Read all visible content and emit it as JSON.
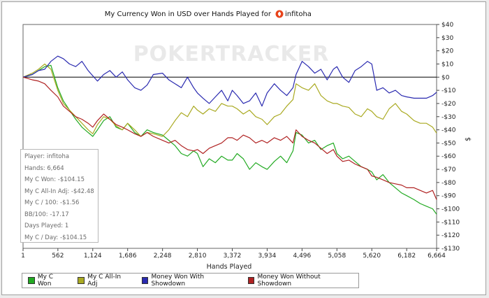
{
  "chart_data": {
    "type": "line",
    "title": "My Currency Won in USD over Hands Played for",
    "title_player": "infitoha",
    "watermark": "POKERTRACKER",
    "xlabel": "Hands Played",
    "ylabel": "$",
    "xlim": [
      1,
      6664
    ],
    "ylim": [
      -130,
      40
    ],
    "x_ticks": [
      1,
      562,
      1124,
      1686,
      2248,
      2810,
      3372,
      3934,
      4496,
      5058,
      5620,
      6182,
      6664
    ],
    "x_tick_labels": [
      "1",
      "562",
      "1,124",
      "1,686",
      "2,248",
      "2,810",
      "3,372",
      "3,934",
      "4,496",
      "5,058",
      "5,620",
      "6,182",
      "6,664"
    ],
    "y_ticks": [
      40,
      30,
      20,
      10,
      0,
      -10,
      -20,
      -30,
      -40,
      -50,
      -60,
      -70,
      -80,
      -90,
      -100,
      -110,
      -120,
      -130
    ],
    "y_tick_labels": [
      "$40",
      "$30",
      "$20",
      "$10",
      "$0",
      "-$10",
      "-$20",
      "-$30",
      "-$40",
      "-$50",
      "-$60",
      "-$70",
      "-$80",
      "-$90",
      "-$100",
      "-$110",
      "-$120",
      "-$130"
    ],
    "series": [
      {
        "name": "My C Won",
        "color": "#22aa22",
        "x": [
          1,
          150,
          250,
          350,
          450,
          560,
          650,
          750,
          850,
          950,
          1050,
          1124,
          1200,
          1300,
          1400,
          1500,
          1600,
          1686,
          1800,
          1900,
          2000,
          2100,
          2248,
          2350,
          2450,
          2550,
          2650,
          2750,
          2810,
          2900,
          3000,
          3100,
          3200,
          3300,
          3372,
          3450,
          3550,
          3650,
          3750,
          3850,
          3934,
          4050,
          4150,
          4250,
          4350,
          4400,
          4496,
          4600,
          4700,
          4800,
          4900,
          5000,
          5058,
          5150,
          5250,
          5350,
          5450,
          5550,
          5620,
          5700,
          5800,
          5900,
          6000,
          6100,
          6182,
          6300,
          6400,
          6500,
          6600,
          6664
        ],
        "values": [
          0,
          2,
          5,
          8,
          9,
          -8,
          -18,
          -25,
          -32,
          -38,
          -42,
          -45,
          -40,
          -33,
          -30,
          -38,
          -40,
          -35,
          -42,
          -45,
          -40,
          -42,
          -44,
          -48,
          -52,
          -58,
          -60,
          -56,
          -58,
          -68,
          -62,
          -65,
          -60,
          -63,
          -63,
          -58,
          -62,
          -70,
          -65,
          -68,
          -70,
          -64,
          -60,
          -65,
          -56,
          -42,
          -44,
          -50,
          -48,
          -55,
          -52,
          -50,
          -58,
          -62,
          -60,
          -64,
          -68,
          -70,
          -72,
          -78,
          -74,
          -80,
          -84,
          -88,
          -90,
          -93,
          -96,
          -98,
          -100,
          -104.15
        ]
      },
      {
        "name": "My C All-In Adj",
        "color": "#aaaa22",
        "x": [
          1,
          150,
          250,
          350,
          450,
          560,
          650,
          750,
          850,
          950,
          1050,
          1124,
          1200,
          1300,
          1400,
          1500,
          1600,
          1686,
          1800,
          1900,
          2000,
          2100,
          2248,
          2350,
          2450,
          2550,
          2650,
          2750,
          2810,
          2900,
          3000,
          3100,
          3200,
          3300,
          3372,
          3450,
          3550,
          3650,
          3750,
          3850,
          3934,
          4050,
          4150,
          4250,
          4350,
          4400,
          4496,
          4600,
          4700,
          4800,
          4900,
          5000,
          5058,
          5150,
          5250,
          5350,
          5450,
          5550,
          5620,
          5700,
          5800,
          5900,
          6000,
          6100,
          6182,
          6300,
          6400,
          6500,
          6600,
          6664
        ],
        "values": [
          0,
          3,
          6,
          10,
          6,
          -10,
          -20,
          -25,
          -30,
          -35,
          -40,
          -43,
          -36,
          -30,
          -32,
          -37,
          -40,
          -35,
          -40,
          -45,
          -42,
          -43,
          -45,
          -40,
          -33,
          -27,
          -30,
          -22,
          -25,
          -28,
          -24,
          -26,
          -20,
          -22,
          -22,
          -24,
          -28,
          -25,
          -30,
          -32,
          -36,
          -30,
          -28,
          -22,
          -17,
          -5,
          -8,
          -10,
          -5,
          -14,
          -18,
          -20,
          -20,
          -22,
          -23,
          -28,
          -30,
          -24,
          -26,
          -30,
          -32,
          -24,
          -20,
          -26,
          -28,
          -33,
          -35,
          -35,
          -38,
          -42.48
        ]
      },
      {
        "name": "Money Won With Showdown",
        "color": "#2a2ab0",
        "x": [
          1,
          150,
          250,
          350,
          450,
          560,
          650,
          750,
          850,
          950,
          1050,
          1124,
          1200,
          1300,
          1400,
          1500,
          1600,
          1686,
          1800,
          1900,
          2000,
          2100,
          2248,
          2350,
          2450,
          2550,
          2650,
          2750,
          2810,
          2900,
          3000,
          3100,
          3200,
          3300,
          3372,
          3450,
          3550,
          3650,
          3750,
          3850,
          3934,
          4050,
          4150,
          4250,
          4350,
          4400,
          4496,
          4600,
          4700,
          4800,
          4900,
          5000,
          5058,
          5150,
          5250,
          5350,
          5450,
          5550,
          5620,
          5700,
          5800,
          5900,
          6000,
          6100,
          6182,
          6300,
          6400,
          6500,
          6600,
          6664
        ],
        "values": [
          0,
          2,
          5,
          6,
          12,
          16,
          14,
          10,
          8,
          12,
          5,
          1,
          -3,
          2,
          5,
          0,
          4,
          -2,
          -8,
          -10,
          -6,
          2,
          3,
          -2,
          -5,
          -8,
          0,
          -8,
          -12,
          -16,
          -20,
          -15,
          -10,
          -18,
          -10,
          -14,
          -20,
          -18,
          -12,
          -22,
          -12,
          -5,
          -10,
          -14,
          -8,
          2,
          12,
          8,
          3,
          6,
          -2,
          6,
          8,
          0,
          -4,
          5,
          8,
          12,
          10,
          -10,
          -8,
          -12,
          -10,
          -14,
          -15,
          -16,
          -16,
          -16,
          -14,
          -11.5
        ]
      },
      {
        "name": "Money Won Without Showdown",
        "color": "#b02222",
        "x": [
          1,
          150,
          250,
          350,
          450,
          560,
          650,
          750,
          850,
          950,
          1050,
          1124,
          1200,
          1300,
          1400,
          1500,
          1600,
          1686,
          1800,
          1900,
          2000,
          2100,
          2248,
          2350,
          2450,
          2550,
          2650,
          2750,
          2810,
          2900,
          3000,
          3100,
          3200,
          3300,
          3372,
          3450,
          3550,
          3650,
          3750,
          3850,
          3934,
          4050,
          4150,
          4250,
          4350,
          4400,
          4496,
          4600,
          4700,
          4800,
          4900,
          5000,
          5058,
          5150,
          5250,
          5350,
          5450,
          5550,
          5620,
          5700,
          5800,
          5900,
          6000,
          6100,
          6182,
          6300,
          6400,
          6500,
          6600,
          6664
        ],
        "values": [
          0,
          -2,
          -3,
          -5,
          -10,
          -15,
          -22,
          -26,
          -30,
          -32,
          -35,
          -38,
          -33,
          -28,
          -32,
          -36,
          -38,
          -40,
          -43,
          -45,
          -42,
          -45,
          -48,
          -50,
          -48,
          -52,
          -55,
          -56,
          -55,
          -58,
          -54,
          -52,
          -50,
          -46,
          -46,
          -48,
          -44,
          -46,
          -50,
          -48,
          -50,
          -46,
          -48,
          -45,
          -50,
          -40,
          -45,
          -48,
          -50,
          -54,
          -58,
          -55,
          -60,
          -64,
          -63,
          -66,
          -68,
          -70,
          -75,
          -76,
          -78,
          -80,
          -81,
          -82,
          -84,
          -84,
          -86,
          -88,
          -86,
          -93
        ]
      }
    ],
    "stats": {
      "player": "Player: infitoha",
      "hands": "Hands: 6,664",
      "won": "My C Won: -$104.15",
      "allin_adj": "My C All-In Adj: -$42.48",
      "per100": "My C / 100: -$1.56",
      "bb100": "BB/100: -17.17",
      "days": "Days Played: 1",
      "per_day": "My C / Day: -$104.15"
    }
  }
}
